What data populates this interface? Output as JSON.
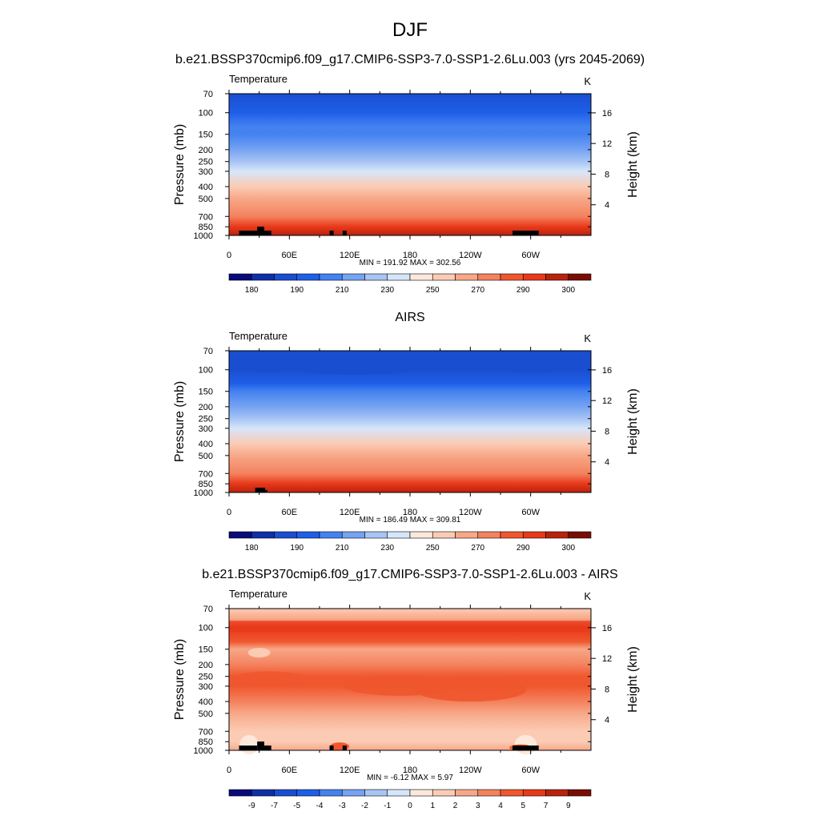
{
  "figure_title": "DJF",
  "chart_data": [
    {
      "type": "heatmap",
      "title": "b.e21.BSSP370cmip6.f09_g17.CMIP6-SSP3-7.0-SSP1-2.6Lu.003 (yrs 2045-2069)",
      "variable": "Temperature",
      "units": "K",
      "ylabel": "Pressure (mb)",
      "ylabel_right": "Height (km)",
      "x_ticks": [
        "0",
        "60E",
        "120E",
        "180",
        "120W",
        "60W"
      ],
      "y_ticks": [
        "70",
        "100",
        "150",
        "200",
        "250",
        "300",
        "400",
        "500",
        "700",
        "850",
        "1000"
      ],
      "y_ticks_right": [
        "16",
        "12",
        "8",
        "4"
      ],
      "stats": "MIN = 191.92  MAX = 302.56",
      "colorbar_labels": [
        "180",
        "190",
        "210",
        "230",
        "250",
        "270",
        "290",
        "300"
      ],
      "min": 191.92,
      "max": 302.56
    },
    {
      "type": "heatmap",
      "title": "AIRS",
      "variable": "Temperature",
      "units": "K",
      "ylabel": "Pressure (mb)",
      "ylabel_right": "Height (km)",
      "x_ticks": [
        "0",
        "60E",
        "120E",
        "180",
        "120W",
        "60W"
      ],
      "y_ticks": [
        "70",
        "100",
        "150",
        "200",
        "250",
        "300",
        "400",
        "500",
        "700",
        "850",
        "1000"
      ],
      "y_ticks_right": [
        "16",
        "12",
        "8",
        "4"
      ],
      "stats": "MIN = 186.49  MAX = 309.81",
      "colorbar_labels": [
        "180",
        "190",
        "210",
        "230",
        "250",
        "270",
        "290",
        "300"
      ],
      "min": 186.49,
      "max": 309.81
    },
    {
      "type": "heatmap",
      "title": "b.e21.BSSP370cmip6.f09_g17.CMIP6-SSP3-7.0-SSP1-2.6Lu.003 - AIRS",
      "variable": "Temperature",
      "units": "K",
      "ylabel": "Pressure (mb)",
      "ylabel_right": "Height (km)",
      "x_ticks": [
        "0",
        "60E",
        "120E",
        "180",
        "120W",
        "60W"
      ],
      "y_ticks": [
        "70",
        "100",
        "150",
        "200",
        "250",
        "300",
        "400",
        "500",
        "700",
        "850",
        "1000"
      ],
      "y_ticks_right": [
        "16",
        "12",
        "8",
        "4"
      ],
      "stats": "MIN =  -6.12  MAX =   5.97",
      "colorbar_labels": [
        "-9",
        "-7",
        "-5",
        "-4",
        "-3",
        "-2",
        "-1",
        "0",
        "1",
        "2",
        "3",
        "4",
        "5",
        "7",
        "9"
      ],
      "min": -6.12,
      "max": 5.97
    }
  ],
  "colors": {
    "palette_16": [
      "#0a0a78",
      "#0f2fa6",
      "#1a4ed0",
      "#1f5fe8",
      "#4482f0",
      "#76a3f2",
      "#a7c4f4",
      "#d6e6fa",
      "#fde8dc",
      "#fbcbb4",
      "#f7a888",
      "#f4825e",
      "#f0572e",
      "#e8391a",
      "#b8230d",
      "#7a0d03"
    ],
    "topography": "#000000"
  },
  "field_stops": {
    "model": [
      [
        70,
        2.9
      ],
      [
        100,
        3.05
      ],
      [
        130,
        4.0
      ],
      [
        150,
        4.3
      ],
      [
        200,
        5.2
      ],
      [
        250,
        6.2
      ],
      [
        300,
        7.6
      ],
      [
        400,
        9.0
      ],
      [
        500,
        10.2
      ],
      [
        700,
        11.8
      ],
      [
        850,
        13.0
      ],
      [
        1000,
        14.4
      ]
    ],
    "airs": [
      [
        70,
        2.9
      ],
      [
        100,
        2.7
      ],
      [
        130,
        3.6
      ],
      [
        150,
        4.2
      ],
      [
        200,
        5.1
      ],
      [
        250,
        6.2
      ],
      [
        300,
        7.5
      ],
      [
        400,
        9.0
      ],
      [
        500,
        10.2
      ],
      [
        700,
        11.8
      ],
      [
        850,
        13.0
      ],
      [
        1000,
        14.6
      ]
    ],
    "diff": [
      [
        70,
        9.0
      ],
      [
        85,
        10.8
      ],
      [
        100,
        13.2
      ],
      [
        130,
        12.2
      ],
      [
        150,
        10.8
      ],
      [
        200,
        11.6
      ],
      [
        250,
        12.6
      ],
      [
        300,
        12.0
      ],
      [
        400,
        11.2
      ],
      [
        500,
        10.3
      ],
      [
        700,
        9.3
      ],
      [
        850,
        9.6
      ],
      [
        1000,
        10.0
      ]
    ]
  }
}
